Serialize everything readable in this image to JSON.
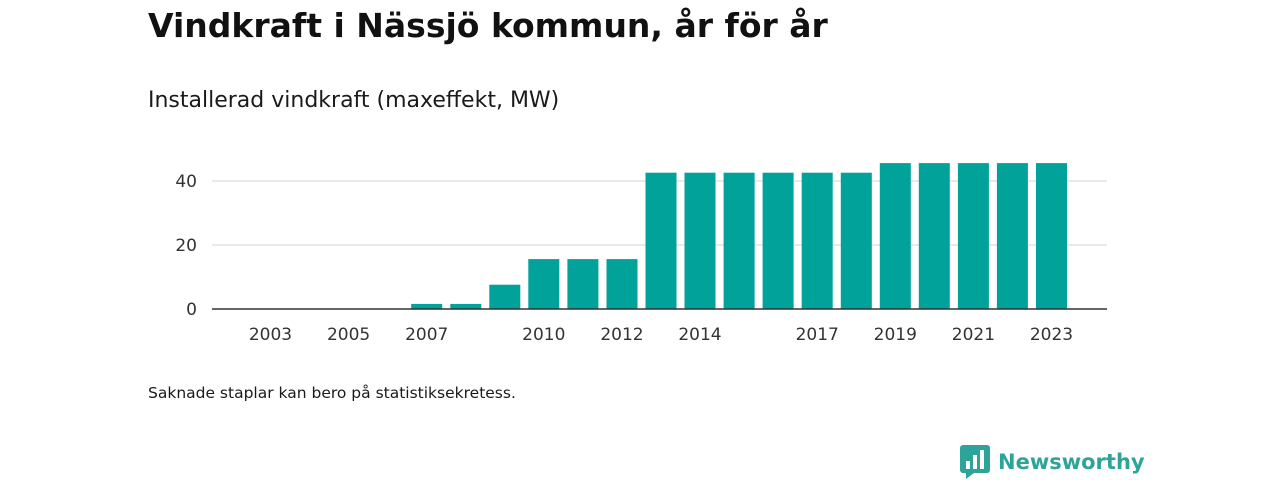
{
  "header": {
    "title": "Vindkraft i Nässjö kommun, år för år",
    "subtitle": "Installerad vindkraft (maxeffekt, MW)"
  },
  "chart_data": {
    "type": "bar",
    "categories": [
      "2003",
      "2004",
      "2005",
      "2006",
      "2007",
      "2008",
      "2009",
      "2010",
      "2011",
      "2012",
      "2013",
      "2014",
      "2015",
      "2016",
      "2017",
      "2018",
      "2019",
      "2020",
      "2021",
      "2022",
      "2023"
    ],
    "values": [
      0,
      0,
      0,
      0,
      1.6,
      1.6,
      7.6,
      15.6,
      15.6,
      15.6,
      42.6,
      42.6,
      42.6,
      42.6,
      42.6,
      42.6,
      45.6,
      45.6,
      45.6,
      45.6,
      45.6
    ],
    "x_tick_labels": [
      "2003",
      "2005",
      "2007",
      "2010",
      "2012",
      "2014",
      "2017",
      "2019",
      "2021",
      "2023"
    ],
    "y_ticks": [
      0,
      20,
      40
    ],
    "ylim": [
      0,
      50
    ],
    "grid": true,
    "bar_color": "#00a29a"
  },
  "footer": {
    "note": "Saknade staplar kan bero på statistiksekretess.",
    "brand": "Newsworthy",
    "brand_color": "#2ea39a",
    "brand_icon": "newsworthy-logo-icon"
  }
}
